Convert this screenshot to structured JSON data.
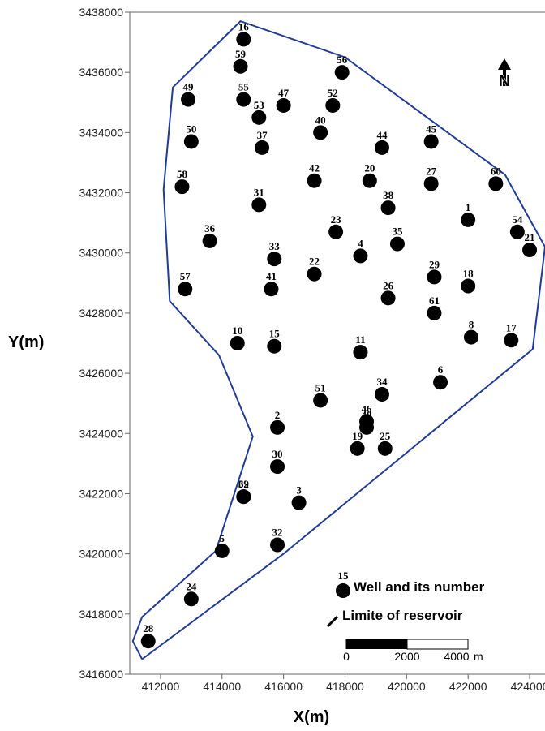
{
  "chart_data": {
    "type": "scatter",
    "xlabel": "X(m)",
    "ylabel": "Y(m)",
    "xlim": [
      411000,
      424500
    ],
    "ylim": [
      3416000,
      3438000
    ],
    "xticks": [
      "412000",
      "414000",
      "416000",
      "418000",
      "420000",
      "422000",
      "424000"
    ],
    "yticks": [
      "3416000",
      "3418000",
      "3420000",
      "3422000",
      "3424000",
      "3426000",
      "3428000",
      "3430000",
      "3432000",
      "3434000",
      "3436000",
      "3438000"
    ],
    "colors": {
      "boundary": "#1f3b9c",
      "wells": "#000000"
    },
    "wells": [
      {
        "id": "16",
        "x": 414700,
        "y": 3437100
      },
      {
        "id": "59",
        "x": 414600,
        "y": 3436200
      },
      {
        "id": "56",
        "x": 417900,
        "y": 3436000
      },
      {
        "id": "49",
        "x": 412900,
        "y": 3435100
      },
      {
        "id": "55",
        "x": 414700,
        "y": 3435100
      },
      {
        "id": "47",
        "x": 416000,
        "y": 3434900
      },
      {
        "id": "52",
        "x": 417600,
        "y": 3434900
      },
      {
        "id": "53",
        "x": 415200,
        "y": 3434500
      },
      {
        "id": "40",
        "x": 417200,
        "y": 3434000
      },
      {
        "id": "50",
        "x": 413000,
        "y": 3433700
      },
      {
        "id": "37",
        "x": 415300,
        "y": 3433500
      },
      {
        "id": "44",
        "x": 419200,
        "y": 3433500
      },
      {
        "id": "45",
        "x": 420800,
        "y": 3433700
      },
      {
        "id": "42",
        "x": 417000,
        "y": 3432400
      },
      {
        "id": "20",
        "x": 418800,
        "y": 3432400
      },
      {
        "id": "27",
        "x": 420800,
        "y": 3432300
      },
      {
        "id": "60",
        "x": 422900,
        "y": 3432300
      },
      {
        "id": "58",
        "x": 412700,
        "y": 3432200
      },
      {
        "id": "31",
        "x": 415200,
        "y": 3431600
      },
      {
        "id": "38",
        "x": 419400,
        "y": 3431500
      },
      {
        "id": "1",
        "x": 422000,
        "y": 3431100
      },
      {
        "id": "23",
        "x": 417700,
        "y": 3430700
      },
      {
        "id": "54",
        "x": 423600,
        "y": 3430700
      },
      {
        "id": "36",
        "x": 413600,
        "y": 3430400
      },
      {
        "id": "35",
        "x": 419700,
        "y": 3430300
      },
      {
        "id": "21",
        "x": 424000,
        "y": 3430100
      },
      {
        "id": "4",
        "x": 418500,
        "y": 3429900
      },
      {
        "id": "33",
        "x": 415700,
        "y": 3429800
      },
      {
        "id": "22",
        "x": 417000,
        "y": 3429300
      },
      {
        "id": "29",
        "x": 420900,
        "y": 3429200
      },
      {
        "id": "18",
        "x": 422000,
        "y": 3428900
      },
      {
        "id": "57",
        "x": 412800,
        "y": 3428800
      },
      {
        "id": "41",
        "x": 415600,
        "y": 3428800
      },
      {
        "id": "26",
        "x": 419400,
        "y": 3428500
      },
      {
        "id": "61",
        "x": 420900,
        "y": 3428000
      },
      {
        "id": "8",
        "x": 422100,
        "y": 3427200
      },
      {
        "id": "17",
        "x": 423400,
        "y": 3427100
      },
      {
        "id": "10",
        "x": 414500,
        "y": 3427000
      },
      {
        "id": "15",
        "x": 415700,
        "y": 3426900
      },
      {
        "id": "11",
        "x": 418500,
        "y": 3426700
      },
      {
        "id": "6",
        "x": 421100,
        "y": 3425700
      },
      {
        "id": "34",
        "x": 419200,
        "y": 3425300
      },
      {
        "id": "51",
        "x": 417200,
        "y": 3425100
      },
      {
        "id": "46",
        "x": 418700,
        "y": 3424400
      },
      {
        "id": "48",
        "x": 418700,
        "y": 3424200
      },
      {
        "id": "2",
        "x": 415800,
        "y": 3424200
      },
      {
        "id": "19",
        "x": 418400,
        "y": 3423500
      },
      {
        "id": "25",
        "x": 419300,
        "y": 3423500
      },
      {
        "id": "30",
        "x": 415800,
        "y": 3422900
      },
      {
        "id": "62",
        "x": 414700,
        "y": 3421900
      },
      {
        "id": "39",
        "x": 414700,
        "y": 3421900
      },
      {
        "id": "3",
        "x": 416500,
        "y": 3421700
      },
      {
        "id": "32",
        "x": 415800,
        "y": 3420300
      },
      {
        "id": "5",
        "x": 414000,
        "y": 3420100
      },
      {
        "id": "24",
        "x": 413000,
        "y": 3418500
      },
      {
        "id": "28",
        "x": 411600,
        "y": 3417100
      }
    ],
    "boundary": [
      [
        411400,
        3416500
      ],
      [
        411100,
        3417100
      ],
      [
        411400,
        3417900
      ],
      [
        413800,
        3420100
      ],
      [
        415000,
        3423900
      ],
      [
        413900,
        3426600
      ],
      [
        412300,
        3428400
      ],
      [
        412100,
        3432100
      ],
      [
        412400,
        3435500
      ],
      [
        414600,
        3437700
      ],
      [
        418000,
        3436500
      ],
      [
        423200,
        3432600
      ],
      [
        424500,
        3430200
      ],
      [
        424100,
        3426800
      ],
      [
        416000,
        3420000
      ],
      [
        411400,
        3416500
      ]
    ]
  },
  "legend": {
    "sample_number": "15",
    "well_text": "Well and its number",
    "reservoir_text": "Limite of reservoir"
  },
  "scale": {
    "labels": [
      "0",
      "2000",
      "4000"
    ],
    "unit": "m"
  },
  "north": {
    "symbol": "N"
  }
}
